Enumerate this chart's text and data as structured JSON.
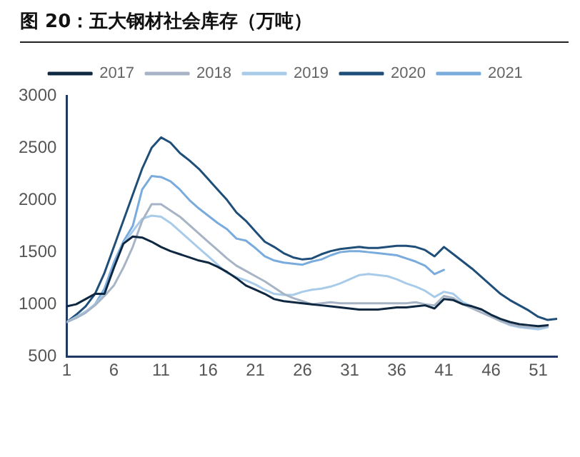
{
  "chart_data": {
    "type": "line",
    "title": "图 20：五大钢材社会库存（万吨）",
    "xlim": [
      1,
      53
    ],
    "xticks": [
      1,
      6,
      11,
      16,
      21,
      26,
      31,
      36,
      41,
      46,
      51
    ],
    "ylim": [
      500,
      3000
    ],
    "yticks": [
      500,
      1000,
      1500,
      2000,
      2500,
      3000
    ],
    "grid": false,
    "legend": "top",
    "marker": "none",
    "line_style": "solid",
    "series": [
      {
        "name": "2017",
        "color": "#0e2841",
        "x": [
          1,
          2,
          3,
          4,
          5,
          6,
          7,
          8,
          9,
          10,
          11,
          12,
          13,
          14,
          15,
          16,
          17,
          18,
          19,
          20,
          21,
          22,
          23,
          24,
          25,
          26,
          27,
          28,
          29,
          30,
          31,
          32,
          33,
          34,
          35,
          36,
          37,
          38,
          39,
          40,
          41,
          42,
          43,
          44,
          45,
          46,
          47,
          48,
          49,
          50,
          51,
          52
        ],
        "values": [
          980,
          1000,
          1050,
          1100,
          1100,
          1350,
          1580,
          1650,
          1640,
          1600,
          1550,
          1510,
          1480,
          1450,
          1420,
          1400,
          1360,
          1310,
          1250,
          1180,
          1140,
          1100,
          1050,
          1030,
          1020,
          1010,
          1000,
          990,
          980,
          970,
          960,
          950,
          950,
          950,
          960,
          970,
          970,
          980,
          990,
          960,
          1050,
          1040,
          1000,
          980,
          950,
          900,
          860,
          830,
          810,
          800,
          790,
          800
        ]
      },
      {
        "name": "2018",
        "color": "#a6b4c5",
        "x": [
          1,
          2,
          3,
          4,
          5,
          6,
          7,
          8,
          9,
          10,
          11,
          12,
          13,
          14,
          15,
          16,
          17,
          18,
          19,
          20,
          21,
          22,
          23,
          24,
          25,
          26,
          27,
          28,
          29,
          30,
          31,
          32,
          33,
          34,
          35,
          36,
          37,
          38,
          39,
          40,
          41,
          42,
          43,
          44,
          45,
          46,
          47,
          48,
          49,
          50,
          51,
          52
        ],
        "values": [
          830,
          870,
          920,
          990,
          1080,
          1180,
          1350,
          1550,
          1800,
          1960,
          1960,
          1900,
          1840,
          1760,
          1680,
          1600,
          1520,
          1440,
          1370,
          1320,
          1270,
          1220,
          1160,
          1100,
          1060,
          1030,
          1000,
          1010,
          1020,
          1010,
          1010,
          1010,
          1010,
          1010,
          1010,
          1010,
          1010,
          1020,
          1000,
          990,
          1080,
          1060,
          1000,
          960,
          920,
          880,
          840,
          810,
          790,
          780,
          780,
          790
        ]
      },
      {
        "name": "2019",
        "color": "#a9cbea",
        "x": [
          1,
          2,
          3,
          4,
          5,
          6,
          7,
          8,
          9,
          10,
          11,
          12,
          13,
          14,
          15,
          16,
          17,
          18,
          19,
          20,
          21,
          22,
          23,
          24,
          25,
          26,
          27,
          28,
          29,
          30,
          31,
          32,
          33,
          34,
          35,
          36,
          37,
          38,
          39,
          40,
          41,
          42,
          43,
          44,
          45,
          46,
          47,
          48,
          49,
          50,
          51,
          52
        ],
        "values": [
          830,
          880,
          930,
          1000,
          1100,
          1350,
          1580,
          1700,
          1820,
          1850,
          1840,
          1780,
          1700,
          1620,
          1540,
          1460,
          1380,
          1300,
          1260,
          1230,
          1190,
          1140,
          1100,
          1090,
          1090,
          1120,
          1140,
          1150,
          1170,
          1200,
          1240,
          1280,
          1290,
          1280,
          1270,
          1240,
          1200,
          1170,
          1130,
          1070,
          1120,
          1100,
          1020,
          980,
          950,
          890,
          840,
          800,
          780,
          770,
          760,
          780
        ]
      },
      {
        "name": "2020",
        "color": "#1f4e79",
        "x": [
          1,
          2,
          3,
          4,
          5,
          6,
          7,
          8,
          9,
          10,
          11,
          12,
          13,
          14,
          15,
          16,
          17,
          18,
          19,
          20,
          21,
          22,
          23,
          24,
          25,
          26,
          27,
          28,
          29,
          30,
          31,
          32,
          33,
          34,
          35,
          36,
          37,
          38,
          39,
          40,
          41,
          42,
          43,
          44,
          45,
          46,
          47,
          48,
          49,
          50,
          51,
          52,
          53
        ],
        "values": [
          830,
          900,
          980,
          1100,
          1300,
          1550,
          1800,
          2050,
          2300,
          2500,
          2600,
          2550,
          2450,
          2380,
          2300,
          2200,
          2100,
          2000,
          1880,
          1800,
          1700,
          1600,
          1550,
          1490,
          1450,
          1430,
          1440,
          1480,
          1510,
          1530,
          1540,
          1550,
          1540,
          1540,
          1550,
          1560,
          1560,
          1550,
          1520,
          1460,
          1550,
          1480,
          1410,
          1340,
          1260,
          1180,
          1100,
          1040,
          990,
          940,
          880,
          850,
          860
        ]
      },
      {
        "name": "2021",
        "color": "#79acdd",
        "x": [
          1,
          2,
          3,
          4,
          5,
          6,
          7,
          8,
          9,
          10,
          11,
          12,
          13,
          14,
          15,
          16,
          17,
          18,
          19,
          20,
          21,
          22,
          23,
          24,
          25,
          26,
          27,
          28,
          29,
          30,
          31,
          32,
          33,
          34,
          35,
          36,
          37,
          38,
          39,
          40,
          41
        ],
        "values": [
          830,
          870,
          920,
          1000,
          1150,
          1400,
          1600,
          1750,
          2100,
          2230,
          2220,
          2180,
          2100,
          2000,
          1920,
          1850,
          1780,
          1720,
          1630,
          1610,
          1540,
          1460,
          1420,
          1400,
          1390,
          1380,
          1410,
          1430,
          1470,
          1500,
          1510,
          1510,
          1500,
          1490,
          1480,
          1470,
          1440,
          1410,
          1370,
          1290,
          1330
        ]
      }
    ]
  }
}
